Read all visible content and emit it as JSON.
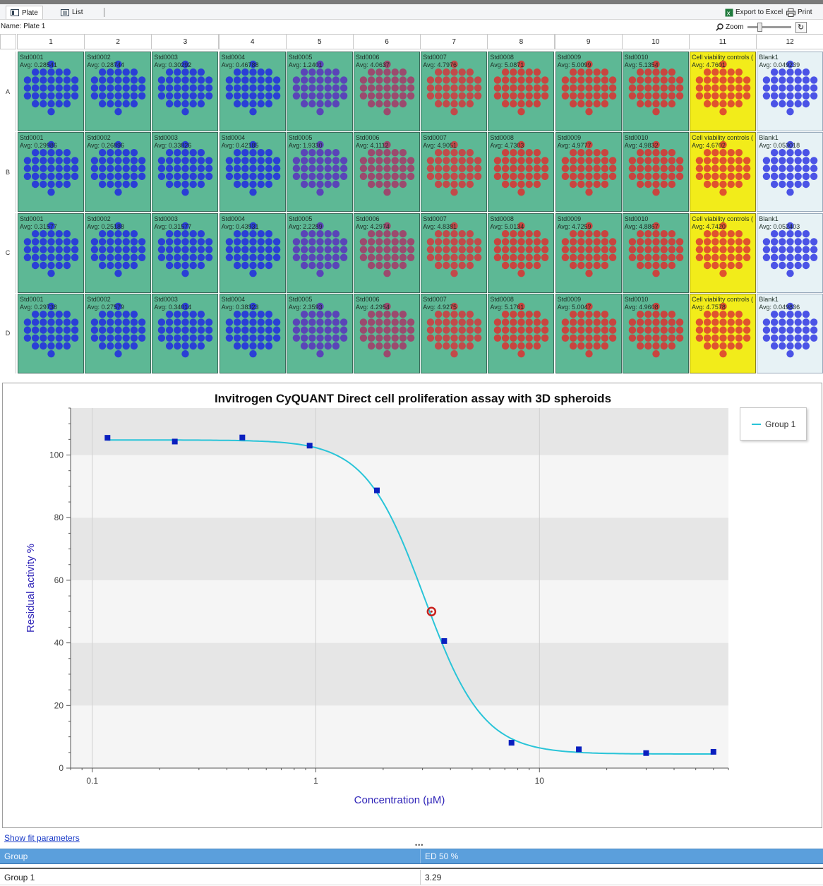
{
  "toolbar": {
    "tabs": [
      {
        "label": "Plate",
        "icon": "plate-icon"
      },
      {
        "label": "List",
        "icon": "list-icon"
      }
    ],
    "export_label": "Export to Excel",
    "print_label": "Print"
  },
  "plate": {
    "name_label": "Name: Plate 1",
    "zoom_label": "Zoom",
    "zoom_reset_icon": "↻",
    "columns": [
      "1",
      "2",
      "3",
      "4",
      "5",
      "6",
      "7",
      "8",
      "9",
      "10",
      "11",
      "12"
    ],
    "rows": [
      {
        "label": "A",
        "avgs": [
          "0.28541",
          "0.28744",
          "0.30292",
          "0.46788",
          "1.2401",
          "4.0637",
          "4.7976",
          "5.0871",
          "5.0099",
          "5.1354",
          "4.7601",
          "0.049239"
        ]
      },
      {
        "label": "B",
        "avgs": [
          "0.29986",
          "0.26896",
          "0.33826",
          "0.42185",
          "1.9330",
          "4.1112",
          "4.9051",
          "4.7303",
          "4.9777",
          "4.9832",
          "4.6702",
          "0.053018"
        ]
      },
      {
        "label": "C",
        "avgs": [
          "0.31577",
          "0.25188",
          "0.31577",
          "0.43931",
          "2.2289",
          "4.2974",
          "4.8381",
          "5.0134",
          "4.7259",
          "4.8867",
          "4.7420",
          "0.052403"
        ]
      },
      {
        "label": "D",
        "avgs": [
          "0.29738",
          "0.27579",
          "0.34014",
          "0.38323",
          "2.3593",
          "4.2954",
          "4.9275",
          "5.1761",
          "5.0047",
          "4.9608",
          "4.7578",
          "0.049836"
        ]
      }
    ],
    "well_names": [
      "Std0001",
      "Std0002",
      "Std0003",
      "Std0004",
      "Std0005",
      "Std0006",
      "Std0007",
      "Std0008",
      "Std0009",
      "Std0010",
      "Cell viability controls (",
      "Blank1"
    ],
    "avg_prefix": "Avg: ",
    "well_colors": [
      "#2a3fd6",
      "#2a3fd6",
      "#2a3fd6",
      "#2a3fd6",
      "#5a44b8",
      "#9b4a6e",
      "#c24a4a",
      "#c9443f",
      "#c9443f",
      "#c9443f",
      "#e0532e",
      "#4b53e6"
    ],
    "colors": {
      "well_bg": "#5db895",
      "control_bg": "#f2ec1a",
      "blank_bg": "#e7f2f5"
    }
  },
  "chart_data": {
    "type": "scatter",
    "title": "Invitrogen CyQUANT Direct cell proliferation assay with 3D spheroids",
    "xlabel": "Concentration (µM)",
    "ylabel": "Residual activity %",
    "xscale": "log",
    "xlim": [
      0.08,
      70
    ],
    "ylim": [
      0,
      115
    ],
    "xticks": [
      {
        "value": 0.1,
        "label": "0.1"
      },
      {
        "value": 1,
        "label": "1"
      },
      {
        "value": 10,
        "label": "10"
      }
    ],
    "yticks": [
      0,
      20,
      40,
      60,
      80,
      100
    ],
    "series": [
      {
        "name": "Group 1",
        "color": "#29c4d8",
        "marker_color": "#0a1fbf",
        "x": [
          0.117,
          0.234,
          0.469,
          0.938,
          1.875,
          3.75,
          7.5,
          15,
          30,
          60
        ],
        "y": [
          105.5,
          104.3,
          105.6,
          103.0,
          88.7,
          40.6,
          8.1,
          6.0,
          4.8,
          5.2
        ],
        "fit": {
          "top": 104.8,
          "bottom": 4.5,
          "ec50": 3.05,
          "hill": 3.3
        }
      }
    ],
    "ed50_marker": {
      "x": 3.29,
      "y": 50,
      "color": "#c8201c"
    },
    "legend": "top-right"
  },
  "results": {
    "show_fit_label": "Show fit parameters",
    "grip": "•••",
    "headers": [
      "Group",
      "ED 50 %"
    ],
    "rows": [
      {
        "group": "Group 1",
        "ed50": "3.29"
      }
    ]
  }
}
